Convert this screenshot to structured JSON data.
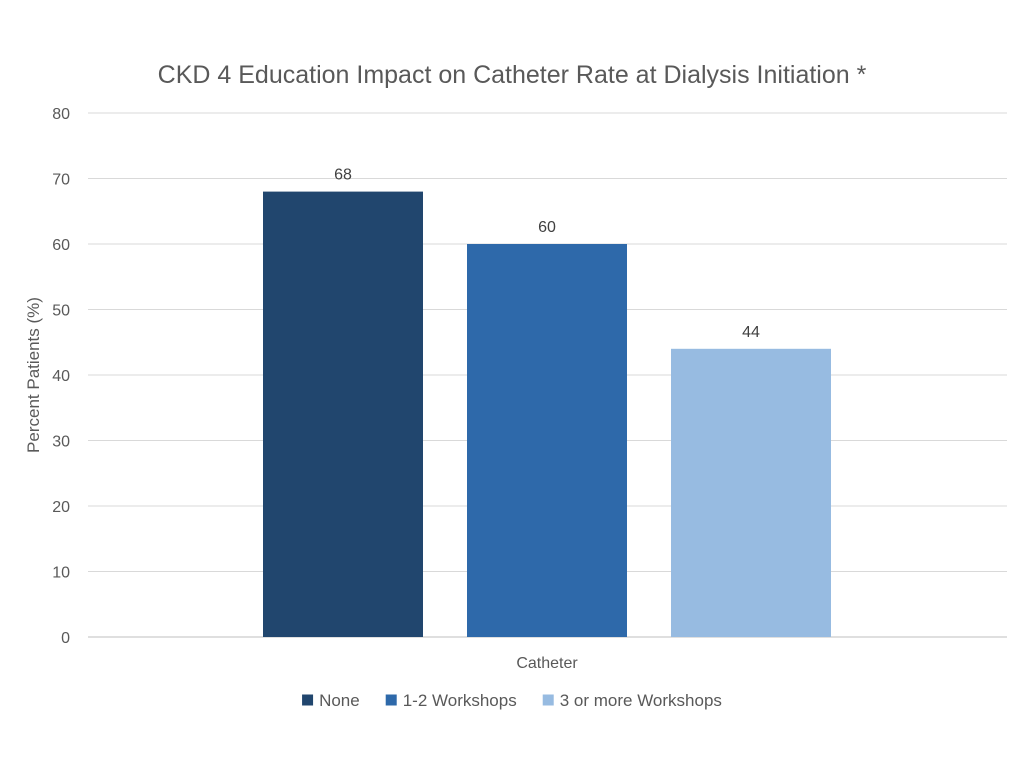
{
  "chart_data": {
    "type": "bar",
    "title": "CKD 4 Education Impact on Catheter Rate at Dialysis Initiation *",
    "xlabel": "",
    "ylabel": "Percent Patients (%)",
    "categories": [
      "Catheter"
    ],
    "series": [
      {
        "name": "None",
        "values": [
          68
        ],
        "color": "#21466e"
      },
      {
        "name": "1-2 Workshops",
        "values": [
          60
        ],
        "color": "#2e69aa"
      },
      {
        "name": "3 or more Workshops",
        "values": [
          44
        ],
        "color": "#97bbe1"
      }
    ],
    "ylim": [
      0,
      80
    ],
    "yticks": [
      "0",
      "10",
      "20",
      "30",
      "40",
      "50",
      "60",
      "70",
      "80"
    ],
    "grid": true,
    "legend_position": "bottom",
    "data_labels": true
  }
}
